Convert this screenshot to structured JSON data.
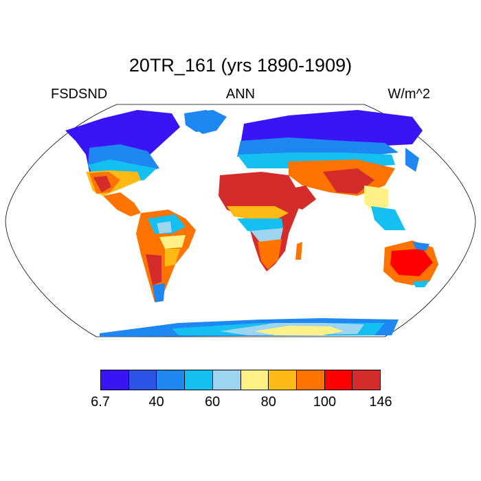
{
  "title": "20TR_161 (yrs 1890-1909)",
  "subtitle_left": "FSDSND",
  "subtitle_center": "ANN",
  "subtitle_right": "W/m^2",
  "map": {
    "projection": "robinson",
    "land_color_scale": true
  },
  "colorbar": {
    "colors": [
      "#3b14f5",
      "#2c52e6",
      "#1f87f2",
      "#14bff2",
      "#9dd4f0",
      "#fff185",
      "#ffbb14",
      "#ff7300",
      "#ff0000",
      "#d42b2b"
    ],
    "labels": [
      {
        "text": "6.7",
        "index": 0
      },
      {
        "text": "40",
        "index": 2
      },
      {
        "text": "60",
        "index": 4
      },
      {
        "text": "80",
        "index": 6
      },
      {
        "text": "100",
        "index": 8
      },
      {
        "text": "146",
        "index": 10
      }
    ]
  }
}
